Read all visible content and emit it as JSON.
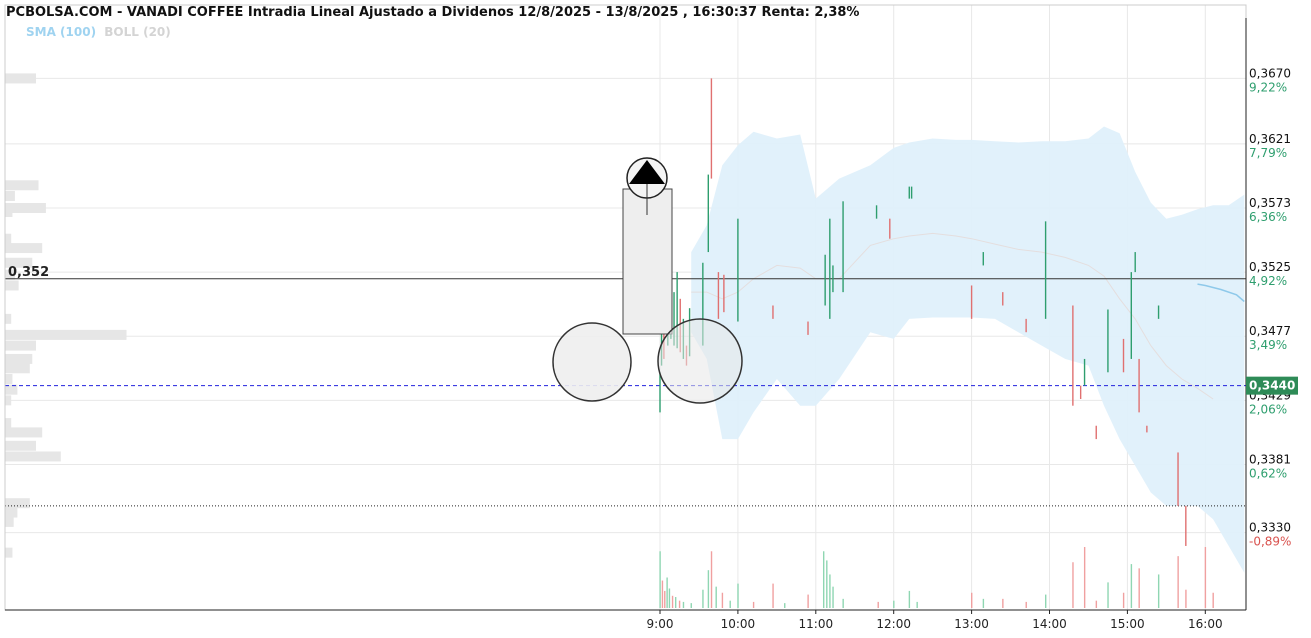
{
  "header": {
    "title": "PCBOLSA.COM - VANADI COFFEE Intradia Lineal Ajustado a Dividenos 12/8/2025 - 13/8/2025 , 16:30:37 Renta: 2,38%"
  },
  "legend": {
    "sma_label": "SMA (100)",
    "boll_label": "BOLL (20)"
  },
  "colors": {
    "up": "#2e9e6e",
    "down": "#e07070",
    "band_fill": "#dff0fb",
    "current_price": "#2e8b57",
    "dashed_line": "#2222dd",
    "grid": "#e8e8e8"
  },
  "chart_data": {
    "type": "line",
    "x_ticks": [
      "9:00",
      "10:00",
      "11:00",
      "12:00",
      "13:00",
      "14:00",
      "15:00",
      "16:00"
    ],
    "y_ticks": [
      {
        "price": 0.367,
        "label": "0,3670",
        "pct": "9,22%"
      },
      {
        "price": 0.3621,
        "label": "0,3621",
        "pct": "7,79%"
      },
      {
        "price": 0.3573,
        "label": "0,3573",
        "pct": "6,36%"
      },
      {
        "price": 0.3525,
        "label": "0,3525",
        "pct": "4,92%"
      },
      {
        "price": 0.3477,
        "label": "0,3477",
        "pct": "3,49%"
      },
      {
        "price": 0.3429,
        "label": "0,3429",
        "pct": "2,06%"
      },
      {
        "price": 0.3381,
        "label": "0,3381",
        "pct": "0,62%"
      },
      {
        "price": 0.333,
        "label": "0,3330",
        "pct": "-0,89%"
      }
    ],
    "ylim": [
      0.3305,
      0.3698
    ],
    "reference_line": {
      "price": 0.352,
      "label": "0,352"
    },
    "current_price": {
      "price": 0.344,
      "label": "0,3440"
    },
    "support_line": {
      "price": 0.335
    },
    "bollinger": {
      "x": [
        9.4,
        9.6,
        9.8,
        10.0,
        10.2,
        10.5,
        10.8,
        11.0,
        11.3,
        11.7,
        12.0,
        12.2,
        12.5,
        12.8,
        13.0,
        13.3,
        13.6,
        13.9,
        14.2,
        14.5,
        14.7,
        14.9,
        15.1,
        15.3,
        15.5,
        15.7,
        15.9,
        16.1,
        16.3,
        16.5
      ],
      "upper": [
        0.354,
        0.356,
        0.3605,
        0.362,
        0.363,
        0.3625,
        0.3628,
        0.358,
        0.3595,
        0.3605,
        0.3618,
        0.3622,
        0.3625,
        0.3624,
        0.3624,
        0.3623,
        0.3622,
        0.3623,
        0.3623,
        0.3625,
        0.3634,
        0.3629,
        0.36,
        0.3577,
        0.3565,
        0.3568,
        0.3572,
        0.3575,
        0.3575,
        0.3583
      ],
      "lower": [
        0.348,
        0.346,
        0.34,
        0.34,
        0.342,
        0.3445,
        0.3425,
        0.3425,
        0.3445,
        0.348,
        0.3475,
        0.349,
        0.3491,
        0.3491,
        0.3491,
        0.349,
        0.348,
        0.347,
        0.346,
        0.3455,
        0.3425,
        0.34,
        0.338,
        0.336,
        0.335,
        0.335,
        0.335,
        0.334,
        0.332,
        0.33
      ],
      "mid": [
        0.351,
        0.351,
        0.3505,
        0.351,
        0.352,
        0.353,
        0.3528,
        0.352,
        0.352,
        0.3545,
        0.355,
        0.3552,
        0.3554,
        0.3552,
        0.355,
        0.3546,
        0.3542,
        0.354,
        0.3536,
        0.353,
        0.3522,
        0.3505,
        0.349,
        0.347,
        0.3455,
        0.3445,
        0.3438,
        0.343,
        null,
        null
      ]
    },
    "sma": {
      "x": [
        15.9,
        16.0,
        16.2,
        16.4,
        16.5
      ],
      "y": [
        0.3516,
        0.3515,
        0.3512,
        0.3508,
        0.3503
      ]
    },
    "price_ticks": [
      {
        "t": 9.0,
        "hi": 0.345,
        "lo": 0.342,
        "dir": "up"
      },
      {
        "t": 9.02,
        "hi": 0.348,
        "lo": 0.3455,
        "dir": "up"
      },
      {
        "t": 9.05,
        "hi": 0.349,
        "lo": 0.346,
        "dir": "down"
      },
      {
        "t": 9.07,
        "hi": 0.3555,
        "lo": 0.349,
        "dir": "down"
      },
      {
        "t": 9.1,
        "hi": 0.35,
        "lo": 0.347,
        "dir": "up"
      },
      {
        "t": 9.14,
        "hi": 0.352,
        "lo": 0.3475,
        "dir": "up"
      },
      {
        "t": 9.18,
        "hi": 0.351,
        "lo": 0.347,
        "dir": "up"
      },
      {
        "t": 9.22,
        "hi": 0.3525,
        "lo": 0.3468,
        "dir": "up"
      },
      {
        "t": 9.26,
        "hi": 0.3505,
        "lo": 0.3465,
        "dir": "down"
      },
      {
        "t": 9.3,
        "hi": 0.349,
        "lo": 0.346,
        "dir": "up"
      },
      {
        "t": 9.34,
        "hi": 0.347,
        "lo": 0.3455,
        "dir": "down"
      },
      {
        "t": 9.38,
        "hi": 0.3498,
        "lo": 0.3462,
        "dir": "up"
      },
      {
        "t": 9.55,
        "hi": 0.3532,
        "lo": 0.347,
        "dir": "up"
      },
      {
        "t": 9.62,
        "hi": 0.3598,
        "lo": 0.354,
        "dir": "up"
      },
      {
        "t": 9.66,
        "hi": 0.367,
        "lo": 0.3595,
        "dir": "down"
      },
      {
        "t": 9.75,
        "hi": 0.3525,
        "lo": 0.349,
        "dir": "down"
      },
      {
        "t": 9.82,
        "hi": 0.3523,
        "lo": 0.3495,
        "dir": "down"
      },
      {
        "t": 10.0,
        "hi": 0.3565,
        "lo": 0.3488,
        "dir": "up"
      },
      {
        "t": 10.45,
        "hi": 0.35,
        "lo": 0.349,
        "dir": "down"
      },
      {
        "t": 10.9,
        "hi": 0.3488,
        "lo": 0.3478,
        "dir": "down"
      },
      {
        "t": 11.12,
        "hi": 0.3538,
        "lo": 0.35,
        "dir": "up"
      },
      {
        "t": 11.18,
        "hi": 0.3565,
        "lo": 0.349,
        "dir": "up"
      },
      {
        "t": 11.22,
        "hi": 0.353,
        "lo": 0.351,
        "dir": "up"
      },
      {
        "t": 11.35,
        "hi": 0.3578,
        "lo": 0.351,
        "dir": "up"
      },
      {
        "t": 11.78,
        "hi": 0.3575,
        "lo": 0.3565,
        "dir": "up"
      },
      {
        "t": 11.95,
        "hi": 0.3565,
        "lo": 0.355,
        "dir": "down"
      },
      {
        "t": 12.2,
        "hi": 0.3589,
        "lo": 0.358,
        "dir": "up"
      },
      {
        "t": 12.23,
        "hi": 0.3589,
        "lo": 0.358,
        "dir": "up"
      },
      {
        "t": 13.0,
        "hi": 0.3515,
        "lo": 0.349,
        "dir": "down"
      },
      {
        "t": 13.15,
        "hi": 0.354,
        "lo": 0.353,
        "dir": "up"
      },
      {
        "t": 13.4,
        "hi": 0.351,
        "lo": 0.35,
        "dir": "down"
      },
      {
        "t": 13.7,
        "hi": 0.349,
        "lo": 0.348,
        "dir": "down"
      },
      {
        "t": 13.95,
        "hi": 0.3563,
        "lo": 0.349,
        "dir": "up"
      },
      {
        "t": 14.3,
        "hi": 0.35,
        "lo": 0.3425,
        "dir": "down"
      },
      {
        "t": 14.4,
        "hi": 0.344,
        "lo": 0.343,
        "dir": "down"
      },
      {
        "t": 14.45,
        "hi": 0.346,
        "lo": 0.344,
        "dir": "up"
      },
      {
        "t": 14.6,
        "hi": 0.341,
        "lo": 0.34,
        "dir": "down"
      },
      {
        "t": 14.75,
        "hi": 0.3497,
        "lo": 0.345,
        "dir": "up"
      },
      {
        "t": 14.95,
        "hi": 0.3475,
        "lo": 0.345,
        "dir": "down"
      },
      {
        "t": 15.05,
        "hi": 0.3525,
        "lo": 0.346,
        "dir": "up"
      },
      {
        "t": 15.1,
        "hi": 0.354,
        "lo": 0.3525,
        "dir": "up"
      },
      {
        "t": 15.15,
        "hi": 0.346,
        "lo": 0.342,
        "dir": "down"
      },
      {
        "t": 15.25,
        "hi": 0.341,
        "lo": 0.3405,
        "dir": "down"
      },
      {
        "t": 15.4,
        "hi": 0.35,
        "lo": 0.349,
        "dir": "up"
      },
      {
        "t": 15.65,
        "hi": 0.339,
        "lo": 0.335,
        "dir": "down"
      },
      {
        "t": 15.75,
        "hi": 0.335,
        "lo": 0.332,
        "dir": "down"
      }
    ],
    "volume_bars": [
      {
        "t": 9.0,
        "v": 0.93,
        "dir": "up"
      },
      {
        "t": 9.03,
        "v": 0.45,
        "dir": "down"
      },
      {
        "t": 9.06,
        "v": 0.28,
        "dir": "down"
      },
      {
        "t": 9.09,
        "v": 0.5,
        "dir": "up"
      },
      {
        "t": 9.12,
        "v": 0.32,
        "dir": "up"
      },
      {
        "t": 9.16,
        "v": 0.2,
        "dir": "down"
      },
      {
        "t": 9.2,
        "v": 0.18,
        "dir": "up"
      },
      {
        "t": 9.25,
        "v": 0.12,
        "dir": "down"
      },
      {
        "t": 9.3,
        "v": 0.1,
        "dir": "up"
      },
      {
        "t": 9.4,
        "v": 0.08,
        "dir": "up"
      },
      {
        "t": 9.55,
        "v": 0.3,
        "dir": "up"
      },
      {
        "t": 9.62,
        "v": 0.62,
        "dir": "up"
      },
      {
        "t": 9.66,
        "v": 0.93,
        "dir": "down"
      },
      {
        "t": 9.72,
        "v": 0.35,
        "dir": "up"
      },
      {
        "t": 9.8,
        "v": 0.25,
        "dir": "down"
      },
      {
        "t": 9.9,
        "v": 0.12,
        "dir": "up"
      },
      {
        "t": 10.0,
        "v": 0.4,
        "dir": "up"
      },
      {
        "t": 10.2,
        "v": 0.1,
        "dir": "down"
      },
      {
        "t": 10.45,
        "v": 0.4,
        "dir": "down"
      },
      {
        "t": 10.6,
        "v": 0.08,
        "dir": "up"
      },
      {
        "t": 10.9,
        "v": 0.22,
        "dir": "down"
      },
      {
        "t": 11.1,
        "v": 0.93,
        "dir": "up"
      },
      {
        "t": 11.14,
        "v": 0.78,
        "dir": "up"
      },
      {
        "t": 11.18,
        "v": 0.55,
        "dir": "up"
      },
      {
        "t": 11.22,
        "v": 0.35,
        "dir": "up"
      },
      {
        "t": 11.35,
        "v": 0.15,
        "dir": "up"
      },
      {
        "t": 11.8,
        "v": 0.1,
        "dir": "down"
      },
      {
        "t": 12.0,
        "v": 0.12,
        "dir": "up"
      },
      {
        "t": 12.2,
        "v": 0.28,
        "dir": "up"
      },
      {
        "t": 12.3,
        "v": 0.1,
        "dir": "up"
      },
      {
        "t": 13.0,
        "v": 0.25,
        "dir": "down"
      },
      {
        "t": 13.15,
        "v": 0.15,
        "dir": "up"
      },
      {
        "t": 13.4,
        "v": 0.15,
        "dir": "down"
      },
      {
        "t": 13.7,
        "v": 0.1,
        "dir": "down"
      },
      {
        "t": 13.95,
        "v": 0.22,
        "dir": "up"
      },
      {
        "t": 14.3,
        "v": 0.75,
        "dir": "down"
      },
      {
        "t": 14.45,
        "v": 1.0,
        "dir": "down"
      },
      {
        "t": 14.6,
        "v": 0.12,
        "dir": "down"
      },
      {
        "t": 14.75,
        "v": 0.42,
        "dir": "up"
      },
      {
        "t": 14.95,
        "v": 0.25,
        "dir": "down"
      },
      {
        "t": 15.05,
        "v": 0.72,
        "dir": "up"
      },
      {
        "t": 15.15,
        "v": 0.65,
        "dir": "down"
      },
      {
        "t": 15.4,
        "v": 0.55,
        "dir": "up"
      },
      {
        "t": 15.65,
        "v": 0.85,
        "dir": "down"
      },
      {
        "t": 15.75,
        "v": 0.3,
        "dir": "down"
      },
      {
        "t": 16.0,
        "v": 1.0,
        "dir": "down"
      },
      {
        "t": 16.1,
        "v": 0.25,
        "dir": "down"
      }
    ],
    "volume_profile": [
      {
        "price": 0.367,
        "w": 0.25
      },
      {
        "price": 0.359,
        "w": 0.27
      },
      {
        "price": 0.3582,
        "w": 0.08
      },
      {
        "price": 0.357,
        "w": 0.06
      },
      {
        "price": 0.3573,
        "w": 0.33
      },
      {
        "price": 0.355,
        "w": 0.05
      },
      {
        "price": 0.3543,
        "w": 0.3
      },
      {
        "price": 0.3532,
        "w": 0.22
      },
      {
        "price": 0.3523,
        "w": 0.08
      },
      {
        "price": 0.3515,
        "w": 0.11
      },
      {
        "price": 0.349,
        "w": 0.05
      },
      {
        "price": 0.3478,
        "w": 0.98
      },
      {
        "price": 0.347,
        "w": 0.25
      },
      {
        "price": 0.346,
        "w": 0.22
      },
      {
        "price": 0.3453,
        "w": 0.2
      },
      {
        "price": 0.3445,
        "w": 0.06
      },
      {
        "price": 0.3437,
        "w": 0.1
      },
      {
        "price": 0.3429,
        "w": 0.05
      },
      {
        "price": 0.3412,
        "w": 0.05
      },
      {
        "price": 0.3405,
        "w": 0.3
      },
      {
        "price": 0.3395,
        "w": 0.25
      },
      {
        "price": 0.3387,
        "w": 0.45
      },
      {
        "price": 0.3352,
        "w": 0.2
      },
      {
        "price": 0.3345,
        "w": 0.1
      },
      {
        "price": 0.3338,
        "w": 0.07
      },
      {
        "price": 0.3315,
        "w": 0.06
      }
    ]
  }
}
